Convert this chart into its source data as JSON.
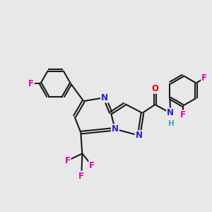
{
  "bg_color": "#e8e8e8",
  "bond_color": "#1a1a1a",
  "atom_colors": {
    "N": "#2020dd",
    "O": "#dd0000",
    "F": "#ee00aa",
    "H": "#30aaaa",
    "C": "#1a1a1a"
  },
  "font_size_atom": 8.5
}
